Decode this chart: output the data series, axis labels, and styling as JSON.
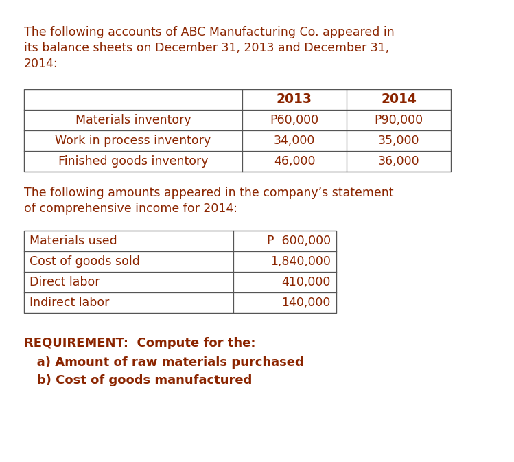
{
  "bg_color": "#ffffff",
  "text_color": "#8B2500",
  "intro_text_lines": [
    "The following accounts of ABC Manufacturing Co. appeared in",
    "its balance sheets on December 31, 2013 and December 31,",
    "2014:"
  ],
  "table1_headers": [
    "",
    "2013",
    "2014"
  ],
  "table1_rows": [
    [
      "Materials inventory",
      "P60,000",
      "P90,000"
    ],
    [
      "Work in process inventory",
      "34,000",
      "35,000"
    ],
    [
      "Finished goods inventory",
      "46,000",
      "36,000"
    ]
  ],
  "middle_text_lines": [
    "The following amounts appeared in the company’s statement",
    "of comprehensive income for 2014:"
  ],
  "table2_rows": [
    [
      "Materials used",
      "P  600,000"
    ],
    [
      "Cost of goods sold",
      "1,840,000"
    ],
    [
      "Direct labor",
      "410,000"
    ],
    [
      "Indirect labor",
      "140,000"
    ]
  ],
  "requirement_title": "REQUIREMENT:  Compute for the:",
  "requirement_items": [
    "   a) Amount of raw materials purchased",
    "   b) Cost of goods manufactured"
  ],
  "font_size": 12.5,
  "header_font_size": 13.5,
  "req_font_size": 13.0,
  "line_color": "#555555",
  "fig_width": 7.49,
  "fig_height": 6.73,
  "dpi": 100
}
